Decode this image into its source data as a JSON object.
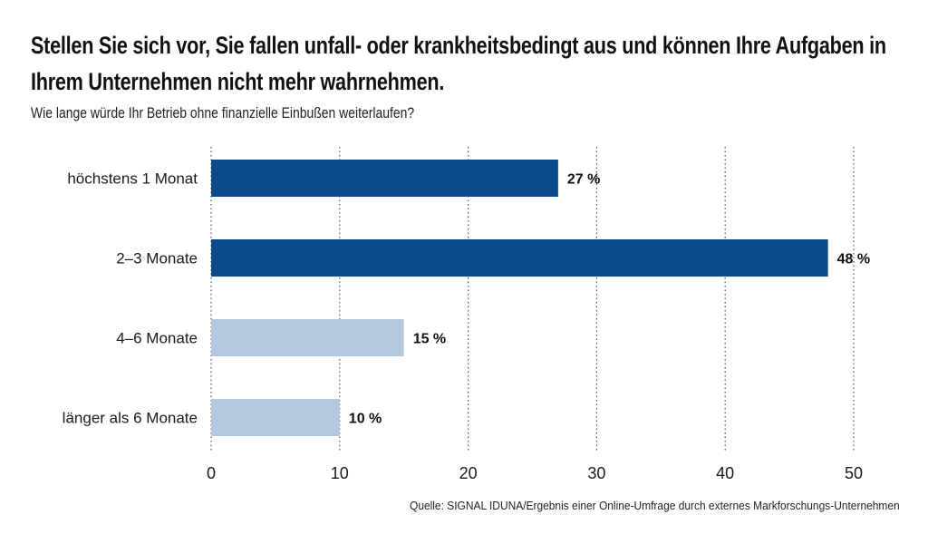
{
  "chart_data": {
    "type": "bar",
    "orientation": "horizontal",
    "title": "Stellen Sie sich vor, Sie fallen unfall- oder krankheitsbedingt aus und können Ihre Aufgaben in Ihrem Unternehmen nicht mehr wahrnehmen.",
    "subtitle": "Wie lange würde Ihr Betrieb ohne finanzielle Einbußen weiterlaufen?",
    "categories": [
      "höchstens 1 Monat",
      "2–3 Monate",
      "4–6 Monate",
      "länger als 6 Monate"
    ],
    "values": [
      27,
      48,
      15,
      10
    ],
    "value_labels": [
      "27 %",
      "48 %",
      "15 %",
      "10 %"
    ],
    "bar_colors": [
      "#0b4a8a",
      "#0b4a8a",
      "#b3c8dc",
      "#b3c8dc"
    ],
    "xlabel": "",
    "ylabel": "",
    "xlim": [
      0,
      50
    ],
    "xticks": [
      0,
      10,
      20,
      30,
      40,
      50
    ],
    "xtick_labels": [
      "0",
      "10",
      "20",
      "30",
      "40",
      "50"
    ],
    "grid": "vertical dotted",
    "legend": "none",
    "source": "Quelle: SIGNAL IDUNA/Ergebnis einer Online-Umfrage durch externes Markforschungs-Unternehmen"
  }
}
